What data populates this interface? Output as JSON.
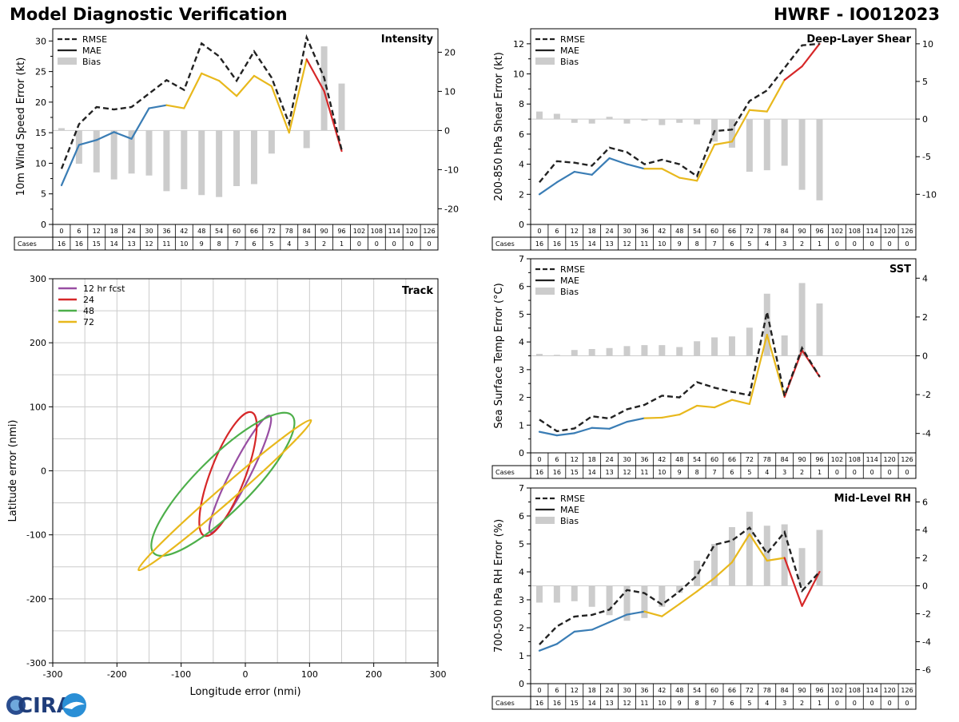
{
  "header": {
    "left_title": "Model Diagnostic Verification",
    "right_title": "HWRF - IO012023"
  },
  "logo": {
    "text": "CIRA",
    "alt": "CIRA logo"
  },
  "colors": {
    "rmse": "#222222",
    "mae_early": "#3a7db5",
    "mae_mid": "#e8b81c",
    "mae_late": "#d62728",
    "bias": "#cccccc",
    "grid": "#cccccc",
    "track_12": "#984ea3",
    "track_24": "#d62728",
    "track_48": "#4daf4a",
    "track_72": "#e8b81c"
  },
  "table": {
    "hours": [
      "0",
      "6",
      "12",
      "18",
      "24",
      "30",
      "36",
      "42",
      "48",
      "54",
      "60",
      "66",
      "72",
      "78",
      "84",
      "90",
      "96",
      "102",
      "108",
      "114",
      "120",
      "126"
    ],
    "cases_label": "Cases",
    "cases": [
      16,
      16,
      15,
      14,
      13,
      12,
      11,
      10,
      9,
      8,
      7,
      6,
      5,
      4,
      3,
      2,
      1,
      0,
      0,
      0,
      0,
      0
    ]
  },
  "legend_labels": {
    "rmse": "RMSE",
    "mae": "MAE",
    "bias": "Bias"
  },
  "chart_data": [
    {
      "id": "intensity",
      "type": "line",
      "title": "Intensity",
      "ylabel": "10m Wind Speed Error (kt)",
      "x": [
        0,
        6,
        12,
        18,
        24,
        30,
        36,
        42,
        48,
        54,
        60,
        66,
        72,
        78,
        84,
        90,
        96
      ],
      "ylim": [
        0,
        32
      ],
      "yticks": [
        0,
        5,
        10,
        15,
        20,
        25,
        30
      ],
      "y2lim": [
        -24,
        26
      ],
      "y2ticks": [
        -20,
        -10,
        0,
        10,
        20
      ],
      "rmse": [
        9.1,
        16.4,
        19.2,
        18.8,
        19.2,
        21.4,
        23.6,
        22.0,
        29.6,
        27.5,
        23.5,
        28.3,
        24.0,
        16.5,
        30.6,
        24.0,
        12.2
      ],
      "mae": [
        6.4,
        13.0,
        13.8,
        15.1,
        14.0,
        19.0,
        19.5,
        19.0,
        24.7,
        23.5,
        21.0,
        24.3,
        22.6,
        15.0,
        27.0,
        21.8,
        12.0
      ],
      "bias": [
        0.6,
        -8.5,
        -10.7,
        -12.5,
        -11.0,
        -11.5,
        -15.5,
        -15.0,
        -16.5,
        -17.0,
        -14.2,
        -13.7,
        -5.9,
        0,
        -4.5,
        21.5,
        12.0
      ]
    },
    {
      "id": "shear",
      "type": "line",
      "title": "Deep-Layer Shear",
      "ylabel": "200-850 hPa Shear Error (kt)",
      "x": [
        0,
        6,
        12,
        18,
        24,
        30,
        36,
        42,
        48,
        54,
        60,
        66,
        72,
        78,
        84,
        90,
        96
      ],
      "ylim": [
        0,
        13
      ],
      "yticks": [
        0,
        2,
        4,
        6,
        8,
        10,
        12
      ],
      "y2lim": [
        -14,
        12
      ],
      "y2ticks": [
        -10,
        -5,
        0,
        5,
        10
      ],
      "rmse": [
        2.8,
        4.2,
        4.1,
        3.9,
        5.1,
        4.8,
        4.0,
        4.3,
        4.0,
        3.2,
        6.2,
        6.3,
        8.2,
        8.9,
        10.4,
        11.9,
        12.0
      ],
      "mae": [
        2.0,
        2.8,
        3.5,
        3.3,
        4.4,
        4.0,
        3.7,
        3.7,
        3.1,
        2.9,
        5.3,
        5.5,
        7.6,
        7.5,
        9.6,
        10.5,
        12.0
      ],
      "bias": [
        1.0,
        0.7,
        -0.5,
        -0.6,
        0.3,
        -0.6,
        -0.2,
        -0.8,
        -0.5,
        -0.7,
        -3.0,
        -3.8,
        -7.0,
        -6.8,
        -6.2,
        -9.4,
        -10.8
      ]
    },
    {
      "id": "sst",
      "type": "line",
      "title": "SST",
      "ylabel": "Sea Surface Temp Error (°C)",
      "x": [
        0,
        6,
        12,
        18,
        24,
        30,
        36,
        42,
        48,
        54,
        60,
        66,
        72,
        78,
        84,
        90,
        96
      ],
      "ylim": [
        0,
        7
      ],
      "yticks": [
        0,
        1,
        2,
        3,
        4,
        5,
        6,
        7
      ],
      "y2lim": [
        -5,
        5
      ],
      "y2ticks": [
        -4,
        -2,
        0,
        2,
        4
      ],
      "rmse": [
        1.2,
        0.78,
        0.88,
        1.32,
        1.24,
        1.57,
        1.73,
        2.06,
        2.0,
        2.55,
        2.35,
        2.2,
        2.08,
        5.08,
        2.05,
        3.78,
        2.75
      ],
      "mae": [
        0.76,
        0.63,
        0.71,
        0.9,
        0.87,
        1.12,
        1.25,
        1.27,
        1.38,
        1.7,
        1.64,
        1.91,
        1.76,
        4.26,
        2.02,
        3.7,
        2.75
      ],
      "bias": [
        0.1,
        0.05,
        0.3,
        0.35,
        0.4,
        0.5,
        0.55,
        0.55,
        0.45,
        0.75,
        0.95,
        1.0,
        1.45,
        3.2,
        1.05,
        3.75,
        2.7
      ]
    },
    {
      "id": "rh",
      "type": "line",
      "title": "Mid-Level RH",
      "ylabel": "700-500 hPa RH Error (%)",
      "x": [
        0,
        6,
        12,
        18,
        24,
        30,
        36,
        42,
        48,
        54,
        60,
        66,
        72,
        78,
        84,
        90,
        96
      ],
      "ylim": [
        0,
        7
      ],
      "yticks": [
        0,
        1,
        2,
        3,
        4,
        5,
        6,
        7
      ],
      "y2lim": [
        -7,
        7
      ],
      "y2ticks": [
        -6,
        -4,
        -2,
        0,
        2,
        4,
        6
      ],
      "rmse": [
        1.4,
        2.05,
        2.4,
        2.46,
        2.65,
        3.35,
        3.24,
        2.83,
        3.3,
        3.87,
        4.97,
        5.12,
        5.58,
        4.66,
        5.42,
        3.32,
        4.0
      ],
      "mae": [
        1.18,
        1.42,
        1.86,
        1.93,
        2.2,
        2.47,
        2.58,
        2.41,
        2.85,
        3.3,
        3.78,
        4.34,
        5.35,
        4.4,
        4.5,
        2.78,
        4.0
      ],
      "bias": [
        -1.2,
        -1.2,
        -1.1,
        -1.5,
        -2.1,
        -2.5,
        -2.3,
        -1.5,
        -0.5,
        1.8,
        3.0,
        4.2,
        5.3,
        4.3,
        4.4,
        2.7,
        4.0
      ]
    },
    {
      "id": "track",
      "type": "scatter",
      "title": "Track",
      "xlabel": "Longitude error (nmi)",
      "ylabel": "Latitude error (nmi)",
      "xlim": [
        -300,
        300
      ],
      "ylim": [
        -300,
        300
      ],
      "xticks": [
        -300,
        -200,
        -100,
        0,
        100,
        200,
        300
      ],
      "yticks": [
        -300,
        -200,
        -100,
        0,
        100,
        200,
        300
      ],
      "ellipses": [
        {
          "label": "12 hr fcst",
          "cx": -8,
          "cy": -5,
          "rx": 102,
          "ry": 15,
          "angle": 63
        },
        {
          "label": "24",
          "cx": -27,
          "cy": -5,
          "rx": 103,
          "ry": 27,
          "angle": 69
        },
        {
          "label": "48",
          "cx": -35,
          "cy": -21,
          "rx": 152,
          "ry": 42,
          "angle": 45
        },
        {
          "label": "72",
          "cx": -32,
          "cy": -38,
          "rx": 178,
          "ry": 12,
          "angle": 41
        }
      ]
    }
  ]
}
